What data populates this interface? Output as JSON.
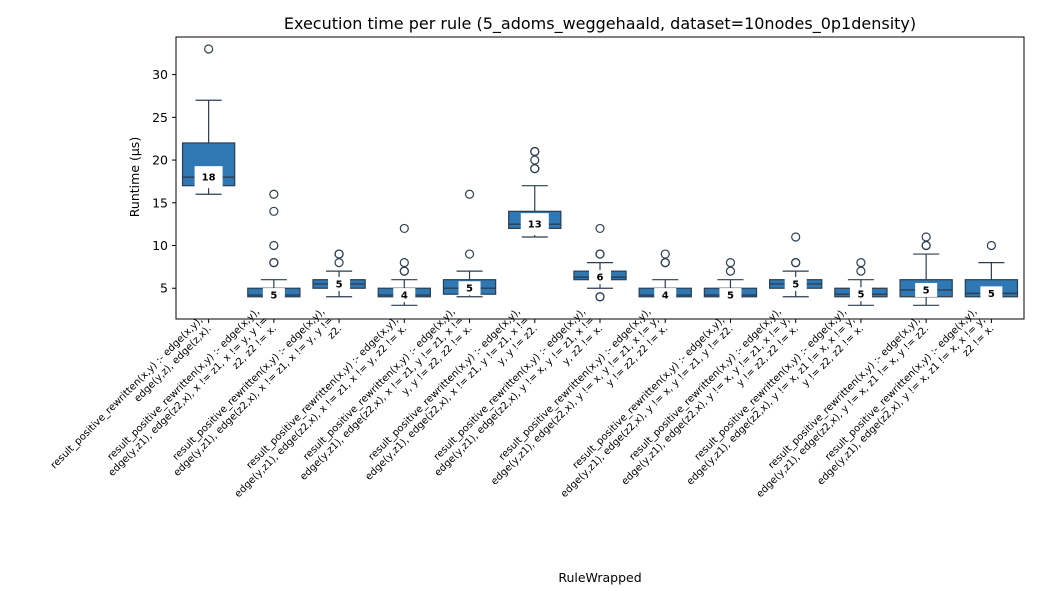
{
  "chart_data": {
    "type": "box",
    "title": "Execution time per rule (5_adoms_weggehaald, dataset=10nodes_0p1density)",
    "xlabel": "RuleWrapped",
    "ylabel": "Runtime (µs)",
    "ylim": [
      1.4,
      34.4
    ],
    "yticks": [
      5,
      10,
      15,
      20,
      25,
      30
    ],
    "grid": false,
    "colors": {
      "box": "#2f78b4",
      "edge": "#2c3e50",
      "axis": "#000000"
    },
    "categories": [
      [
        "result_positive_rewritten(x,y) :-     edge(x,y),",
        "edge(y,z),    edge(z,x)."
      ],
      [
        "result_positive_rewritten(x,y) :-     edge(x,y),",
        "edge(y,z1),   edge(z2,x),   x != z1,   x != y,   y !=",
        "z2,   z2 != x."
      ],
      [
        "result_positive_rewritten(x,y) :-     edge(x,y),",
        "edge(y,z1),   edge(z2,x),   x != z1,   x != y,   y !=",
        "z2."
      ],
      [
        "result_positive_rewritten(x,y) :-     edge(x,y),",
        "edge(y,z1),   edge(z2,x),   x != z1,   x != y,   z2 != x."
      ],
      [
        "result_positive_rewritten(x,y) :-     edge(x,y),",
        "edge(y,z1),   edge(z2,x),   x != z1,   y != z1,   x !=",
        "y,   y != z2,   z2 != x."
      ],
      [
        "result_positive_rewritten(x,y) :-     edge(x,y),",
        "edge(y,z1),   edge(z2,x),   x != z1,   y != z1,   x !=",
        "y,   y != z2."
      ],
      [
        "result_positive_rewritten(x,y) :-     edge(x,y),",
        "edge(y,z1),   edge(z2,x),   y != x,   y != z1,   x !=",
        "y,   z2 != x."
      ],
      [
        "result_positive_rewritten(x,y) :-     edge(x,y),",
        "edge(y,z1),   edge(z2,x),   y != x,   y != z1,   x != y,",
        "y != z2,   z2 != x."
      ],
      [
        "result_positive_rewritten(x,y) :-     edge(x,y),",
        "edge(y,z1),   edge(z2,x),   y != x,   y != z1,   y != z2."
      ],
      [
        "result_positive_rewritten(x,y) :-     edge(x,y),",
        "edge(y,z1),   edge(z2,x),   y != x,   y != z1,   x != y,",
        "y != z2,   z2 != x."
      ],
      [
        "result_positive_rewritten(x,y) :-     edge(x,y),",
        "edge(y,z1),   edge(z2,x),   y != x,   z1 != x,   x != y,",
        "y != z2,   z2 != x."
      ],
      [
        "result_positive_rewritten(x,y) :-     edge(x,y),",
        "edge(y,z1),   edge(z2,x),   y != x,   z1 != x,   y != z2."
      ],
      [
        "result_positive_rewritten(x,y) :-     edge(x,y),",
        "edge(y,z1),   edge(z2,x),   y != x,   z1 != x,   x != y,",
        "z2 != x."
      ]
    ],
    "boxes": [
      {
        "q1": 17.0,
        "median": 18.0,
        "q3": 22.0,
        "whislo": 16.0,
        "whishi": 27.0,
        "fliers": [
          33
        ],
        "label": "18"
      },
      {
        "q1": 4.0,
        "median": 4.2,
        "q3": 5.0,
        "whislo": 4.0,
        "whishi": 6.0,
        "fliers": [
          8,
          8,
          10,
          14,
          16
        ],
        "label": "5"
      },
      {
        "q1": 5.0,
        "median": 5.5,
        "q3": 6.0,
        "whislo": 4.0,
        "whishi": 7.0,
        "fliers": [
          8,
          9,
          9
        ],
        "label": "5"
      },
      {
        "q1": 4.0,
        "median": 4.2,
        "q3": 5.0,
        "whislo": 3.0,
        "whishi": 6.0,
        "fliers": [
          7,
          7,
          8,
          12
        ],
        "label": "4"
      },
      {
        "q1": 4.3,
        "median": 5.0,
        "q3": 6.0,
        "whislo": 4.0,
        "whishi": 7.0,
        "fliers": [
          9,
          16
        ],
        "label": "5"
      },
      {
        "q1": 12.0,
        "median": 12.5,
        "q3": 14.0,
        "whislo": 11.0,
        "whishi": 17.0,
        "fliers": [
          19,
          19,
          20,
          21,
          21
        ],
        "label": "13"
      },
      {
        "q1": 6.0,
        "median": 6.3,
        "q3": 7.0,
        "whislo": 5.0,
        "whishi": 8.0,
        "fliers": [
          4,
          4,
          9,
          9,
          12
        ],
        "label": "6"
      },
      {
        "q1": 4.0,
        "median": 4.2,
        "q3": 5.0,
        "whislo": 4.0,
        "whishi": 6.0,
        "fliers": [
          8,
          8,
          9
        ],
        "label": "4"
      },
      {
        "q1": 4.0,
        "median": 4.2,
        "q3": 5.0,
        "whislo": 4.0,
        "whishi": 6.0,
        "fliers": [
          7,
          8
        ],
        "label": "5"
      },
      {
        "q1": 5.0,
        "median": 5.5,
        "q3": 6.0,
        "whislo": 4.0,
        "whishi": 7.0,
        "fliers": [
          8,
          8,
          11
        ],
        "label": "5"
      },
      {
        "q1": 4.0,
        "median": 4.3,
        "q3": 5.0,
        "whislo": 3.0,
        "whishi": 6.0,
        "fliers": [
          7,
          8
        ],
        "label": "5"
      },
      {
        "q1": 4.0,
        "median": 4.8,
        "q3": 6.0,
        "whislo": 3.0,
        "whishi": 9.0,
        "fliers": [
          10,
          10,
          11
        ],
        "label": "5"
      },
      {
        "q1": 4.0,
        "median": 4.4,
        "q3": 6.0,
        "whislo": 4.0,
        "whishi": 8.0,
        "fliers": [
          10
        ],
        "label": "5"
      }
    ]
  }
}
